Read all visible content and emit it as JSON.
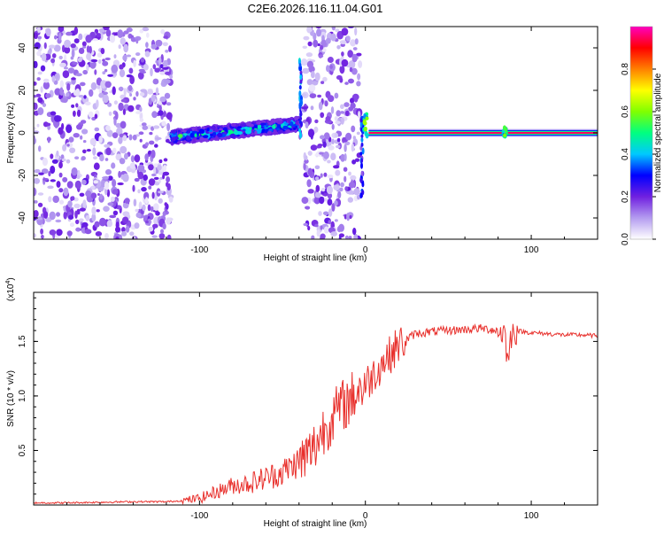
{
  "figure_title": "C2E6.2026.116.11.04.G01",
  "chart_data": [
    {
      "type": "heatmap",
      "title": "C2E6.2026.116.11.04.G01",
      "xlabel": "Height of straight line (km)",
      "ylabel": "Frequency (Hz)",
      "xlim": [
        -200,
        140
      ],
      "ylim": [
        -50,
        50
      ],
      "xticks": [
        -100,
        0,
        100
      ],
      "yticks": [
        -40,
        -20,
        0,
        20,
        40
      ],
      "colorbar": {
        "label": "Normalized spectral amplitude",
        "range": [
          0,
          1
        ],
        "ticks": [
          0.0,
          0.2,
          0.4,
          0.6,
          0.8
        ],
        "colormap": [
          "#ffffff",
          "#b49cf0",
          "#7020e0",
          "#0000ff",
          "#00c8ff",
          "#00ff80",
          "#80ff00",
          "#ffff00",
          "#ff8000",
          "#ff0000",
          "#ff00c0"
        ]
      },
      "regions": [
        {
          "name": "noise",
          "x_range": [
            -200,
            -117
          ],
          "freq_range": [
            -50,
            50
          ],
          "amplitude": 0.15
        },
        {
          "name": "ridge",
          "x_range": [
            -117,
            -40
          ],
          "freq_center": [
            -2,
            4
          ],
          "freq_halfwidth": 3,
          "amplitude_peak": 0.45
        },
        {
          "name": "spike",
          "x_center": -39,
          "freq_range": [
            -2,
            35
          ],
          "amplitude": 0.3
        },
        {
          "name": "noise",
          "x_range": [
            -37,
            -3
          ],
          "freq_range": [
            -50,
            50
          ],
          "amplitude": 0.15
        },
        {
          "name": "spike",
          "x_center": -2,
          "freq_range": [
            -30,
            8
          ],
          "amplitude": 0.25
        },
        {
          "name": "blip",
          "x_center": 0,
          "freq_range": [
            -2,
            10
          ],
          "amplitude": 0.55
        },
        {
          "name": "carrier",
          "x_range": [
            2,
            140
          ],
          "freq": 0,
          "amplitude": 0.95
        },
        {
          "name": "blip",
          "x_center": 84,
          "freq_range": [
            -2,
            3
          ],
          "amplitude": 0.5
        }
      ]
    },
    {
      "type": "line",
      "xlabel": "Height of straight line (km)",
      "ylabel": "SNR (10 * v/v)",
      "y_multiplier": "(x10",
      "y_multiplier_exponent": "4",
      "y_multiplier_close": ")",
      "xlim": [
        -200,
        140
      ],
      "ylim": [
        0,
        1.95
      ],
      "xticks": [
        -100,
        0,
        100
      ],
      "yticks": [
        0.5,
        1.0,
        1.5
      ],
      "line_color": "#e8302c",
      "series": [
        {
          "name": "SNR",
          "x": [
            -200,
            -180,
            -160,
            -140,
            -120,
            -110,
            -100,
            -90,
            -80,
            -70,
            -60,
            -50,
            -45,
            -40,
            -35,
            -30,
            -25,
            -20,
            -15,
            -10,
            -5,
            0,
            5,
            10,
            15,
            20,
            25,
            30,
            40,
            50,
            60,
            70,
            80,
            84,
            86,
            88,
            90,
            100,
            110,
            120,
            130,
            140
          ],
          "y": [
            0.02,
            0.02,
            0.025,
            0.03,
            0.03,
            0.04,
            0.06,
            0.12,
            0.18,
            0.2,
            0.25,
            0.3,
            0.35,
            0.4,
            0.45,
            0.55,
            0.7,
            0.8,
            0.9,
            0.95,
            1.05,
            1.1,
            1.2,
            1.3,
            1.38,
            1.47,
            1.52,
            1.57,
            1.59,
            1.6,
            1.61,
            1.62,
            1.6,
            1.58,
            1.3,
            1.57,
            1.6,
            1.58,
            1.57,
            1.56,
            1.56,
            1.55
          ]
        }
      ]
    }
  ]
}
